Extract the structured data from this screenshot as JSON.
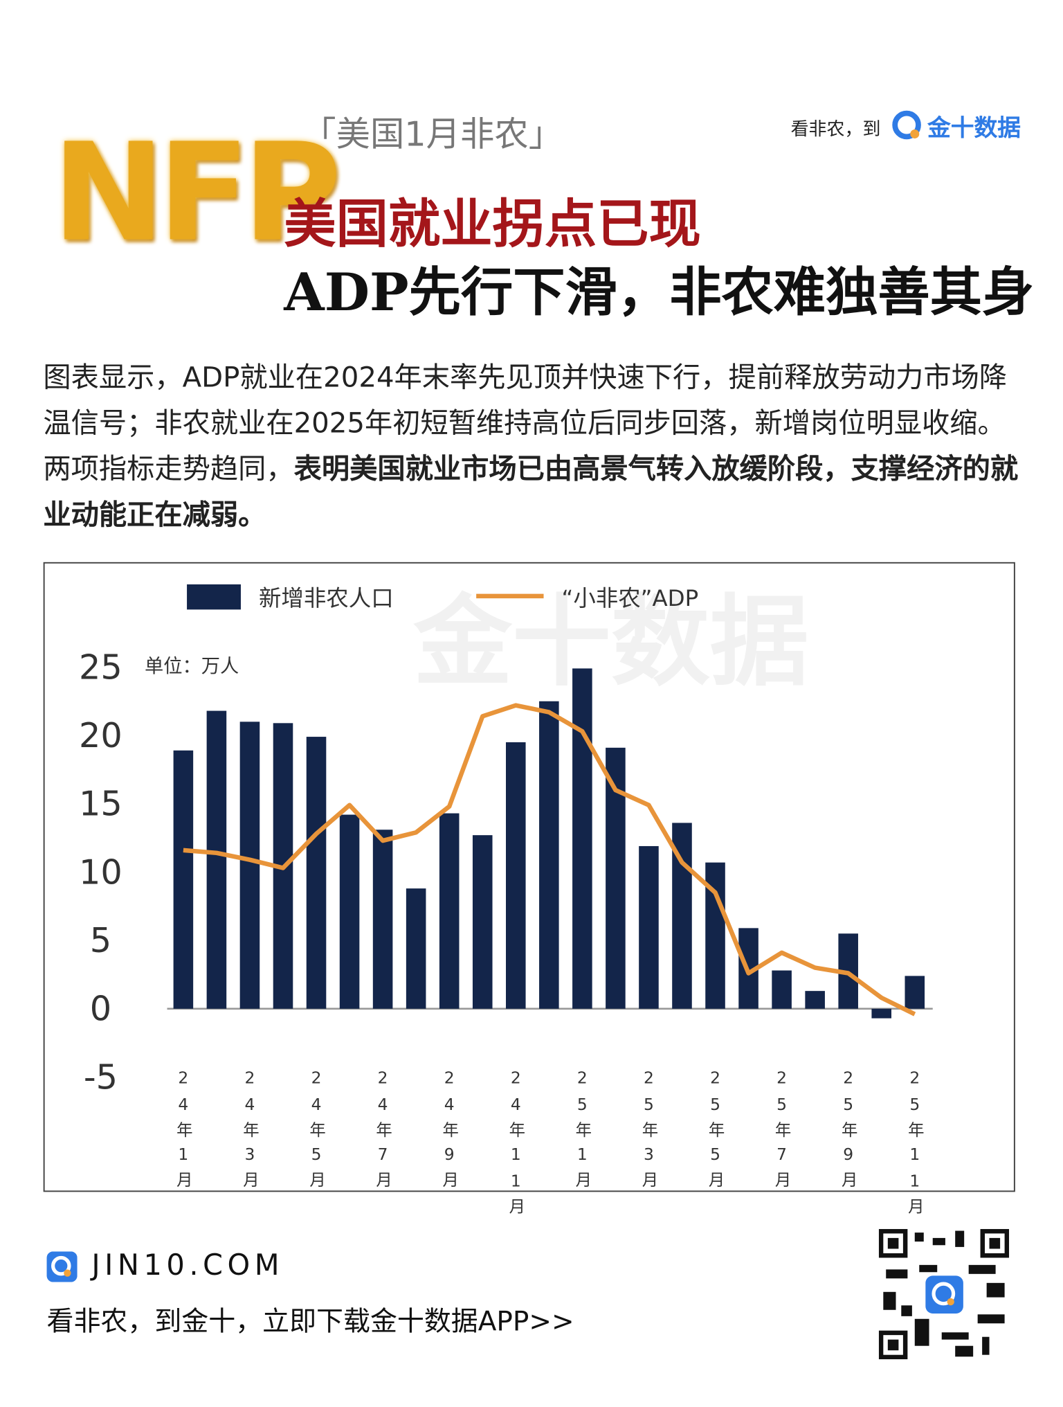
{
  "header": {
    "tag": "「美国1月非农」",
    "logo_text": "NFP",
    "promo": "看非农，到",
    "brand": "金十数据",
    "title_line1": "美国就业拐点已现",
    "title_line2": "ADP先行下滑，非农难独善其身"
  },
  "summary": {
    "text": "图表显示，ADP就业在2024年末率先见顶并快速下行，提前释放劳动力市场降温信号；非农就业在2025年初短暂维持高位后同步回落，新增岗位明显收缩。两项指标走势趋同，",
    "bold": "表明美国就业市场已由高景气转入放缓阶段，支撑经济的就业动能正在减弱。"
  },
  "chart_data": {
    "type": "bar",
    "unit": "单位：万人",
    "watermark": "金十数据",
    "categories": [
      "24年1月",
      null,
      "24年3月",
      null,
      "24年5月",
      null,
      "24年7月",
      null,
      "24年9月",
      null,
      "24年11月",
      null,
      "25年1月",
      null,
      "25年3月",
      null,
      "25年5月",
      null,
      "25年7月",
      null,
      "25年9月",
      null,
      "25年11月"
    ],
    "series": [
      {
        "name": "新增非农人口",
        "type": "bar",
        "color": "#13254a",
        "values": [
          18.9,
          21.8,
          21.0,
          20.9,
          19.9,
          14.2,
          13.1,
          8.8,
          14.3,
          12.7,
          19.5,
          22.5,
          24.9,
          19.1,
          11.9,
          13.6,
          10.7,
          5.9,
          2.8,
          1.3,
          5.5,
          -0.7,
          2.4
        ]
      },
      {
        "name": "“小非农”ADP",
        "type": "line",
        "color": "#e8943a",
        "values": [
          11.6,
          11.4,
          10.9,
          10.3,
          12.8,
          14.9,
          12.3,
          12.9,
          14.8,
          21.4,
          22.2,
          21.7,
          20.3,
          16.0,
          14.9,
          10.7,
          8.5,
          2.6,
          4.1,
          3.0,
          2.6,
          0.8,
          -0.4
        ]
      }
    ],
    "ylim": [
      -5,
      25
    ],
    "yticks": [
      -5,
      0,
      5,
      10,
      15,
      20,
      25
    ]
  },
  "footer": {
    "site": "JIN10.COM",
    "slogan": "看非农，到金十，立即下载金十数据APP>>"
  }
}
